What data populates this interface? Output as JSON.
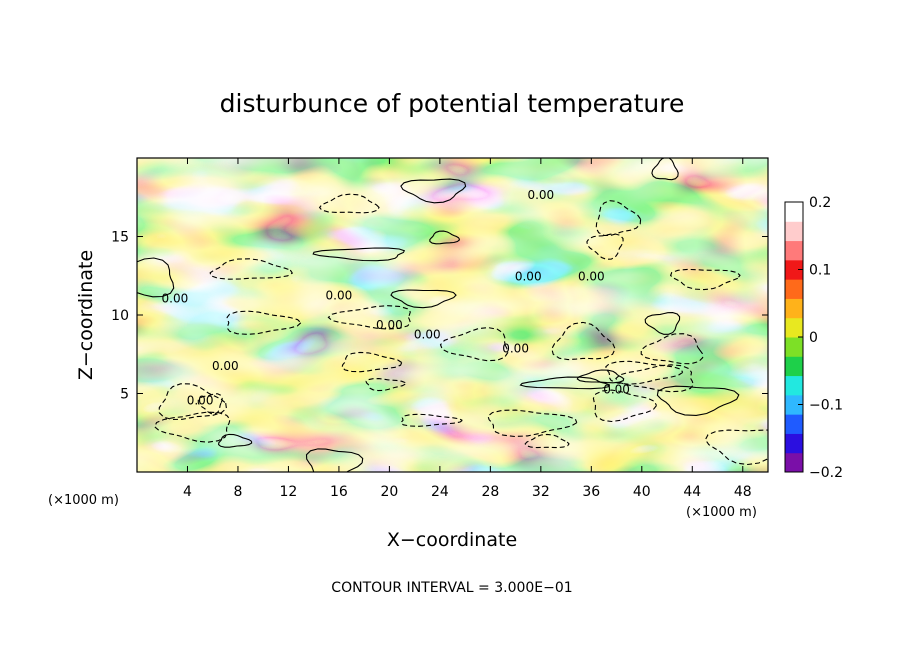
{
  "chart_data": {
    "type": "heatmap",
    "title": "disturbunce of potential temperature",
    "xlabel": "X−coordinate",
    "ylabel": "Z−coordinate",
    "x_unit_left": "(×1000 m)",
    "x_unit_right": "(×1000 m)",
    "footer": "CONTOUR INTERVAL = 3.000E−01",
    "xlim": [
      0,
      50
    ],
    "ylim": [
      0,
      20
    ],
    "x_ticks": [
      4,
      8,
      12,
      16,
      20,
      24,
      28,
      32,
      36,
      40,
      44,
      48
    ],
    "x_tick_labels": [
      "4",
      "8",
      "12",
      "16",
      "20",
      "24",
      "28",
      "32",
      "36",
      "40",
      "44",
      "48"
    ],
    "y_ticks": [
      5,
      10,
      15
    ],
    "y_tick_labels": [
      "5",
      "10",
      "15"
    ],
    "colorbar": {
      "min": -0.2,
      "max": 0.2,
      "ticks": [
        0.2,
        0.1,
        0,
        -0.1,
        -0.2
      ],
      "tick_labels": [
        "0.2",
        "0.1",
        "0",
        "−0.1",
        "−0.2"
      ],
      "colors": [
        "#7a0fa8",
        "#2b0fe0",
        "#1f5bff",
        "#2fb8ff",
        "#22e8e0",
        "#1ed04a",
        "#7de026",
        "#e8e820",
        "#ffb21a",
        "#ff6a1a",
        "#f01818",
        "#ff7a7a",
        "#ffcccc",
        "#ffffff"
      ]
    },
    "contour_labels": [
      {
        "x": 32,
        "z": 17.4,
        "text": "0.00"
      },
      {
        "x": 31,
        "z": 12.2,
        "text": "0.00"
      },
      {
        "x": 36,
        "z": 12.2,
        "text": "0.00"
      },
      {
        "x": 16,
        "z": 11.0,
        "text": "0.00"
      },
      {
        "x": 3,
        "z": 10.8,
        "text": "0.00"
      },
      {
        "x": 20,
        "z": 9.1,
        "text": "0.00"
      },
      {
        "x": 23,
        "z": 8.5,
        "text": "0.00"
      },
      {
        "x": 30,
        "z": 7.6,
        "text": "0.00"
      },
      {
        "x": 7,
        "z": 6.5,
        "text": "0.00"
      },
      {
        "x": 38,
        "z": 5.0,
        "text": "0.00"
      },
      {
        "x": 5,
        "z": 4.3,
        "text": "0.00"
      }
    ]
  }
}
